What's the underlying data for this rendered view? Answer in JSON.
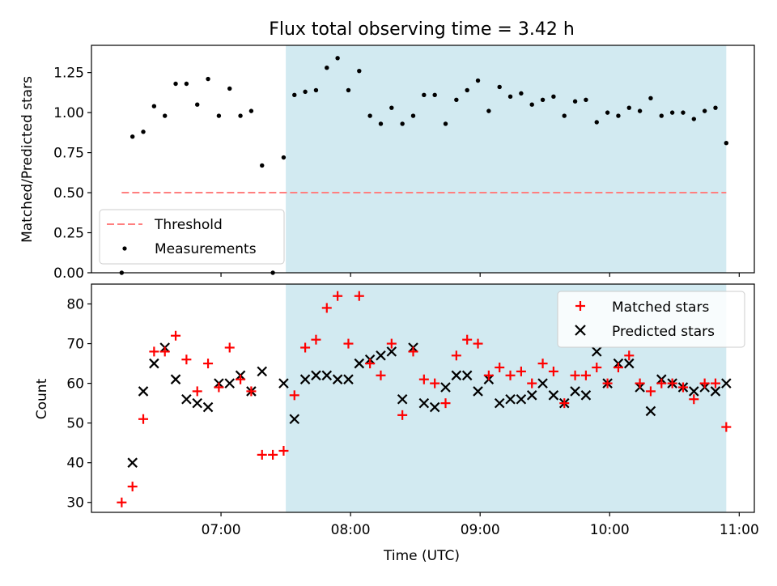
{
  "chart_data": [
    {
      "type": "scatter",
      "title": "Flux total observing time = 3.42 h",
      "xlabel": "",
      "ylabel": "Matched/Predicted stars",
      "xlim": [
        "06:00",
        "11:07"
      ],
      "ylim": [
        0,
        1.42
      ],
      "yticks": [
        "0.00",
        "0.25",
        "0.50",
        "0.75",
        "1.00",
        "1.25"
      ],
      "shaded_region": {
        "start": "07:30",
        "end": "10:54",
        "color": "#add8e6"
      },
      "threshold": {
        "name": "Threshold",
        "value": 0.5,
        "start": "06:14",
        "end": "10:54",
        "color": "#ff7f7f"
      },
      "legend_position": "lower-left",
      "series": [
        {
          "name": "Measurements",
          "color": "#000000",
          "marker": "dot",
          "x": [
            "06:14",
            "06:19",
            "06:24",
            "06:29",
            "06:34",
            "06:39",
            "06:44",
            "06:49",
            "06:54",
            "06:59",
            "07:04",
            "07:09",
            "07:14",
            "07:19",
            "07:24",
            "07:29",
            "07:34",
            "07:39",
            "07:44",
            "07:49",
            "07:54",
            "07:59",
            "08:04",
            "08:09",
            "08:14",
            "08:19",
            "08:24",
            "08:29",
            "08:34",
            "08:39",
            "08:44",
            "08:49",
            "08:54",
            "08:59",
            "09:04",
            "09:09",
            "09:14",
            "09:19",
            "09:24",
            "09:29",
            "09:34",
            "09:39",
            "09:44",
            "09:49",
            "09:54",
            "09:59",
            "10:04",
            "10:09",
            "10:14",
            "10:19",
            "10:24",
            "10:29",
            "10:34",
            "10:39",
            "10:44",
            "10:49",
            "10:54"
          ],
          "y": [
            0.0,
            0.85,
            0.88,
            1.04,
            0.98,
            1.18,
            1.18,
            1.05,
            1.21,
            0.98,
            1.15,
            0.98,
            1.01,
            0.67,
            0.0,
            0.72,
            1.11,
            1.13,
            1.14,
            1.28,
            1.34,
            1.14,
            1.26,
            0.98,
            0.93,
            1.03,
            0.93,
            0.98,
            1.11,
            1.11,
            0.93,
            1.08,
            1.14,
            1.2,
            1.01,
            1.16,
            1.1,
            1.12,
            1.05,
            1.08,
            1.1,
            0.98,
            1.07,
            1.08,
            0.94,
            1.0,
            0.98,
            1.03,
            1.01,
            1.09,
            0.98,
            1.0,
            1.0,
            0.96,
            1.01,
            1.03,
            0.81
          ]
        }
      ]
    },
    {
      "type": "scatter",
      "title": "",
      "xlabel": "Time (UTC)",
      "ylabel": "Count",
      "xlim": [
        "06:00",
        "11:07"
      ],
      "ylim": [
        27.5,
        85
      ],
      "xticks": [
        "07:00",
        "08:00",
        "09:00",
        "10:00",
        "11:00"
      ],
      "yticks": [
        "30",
        "40",
        "50",
        "60",
        "70",
        "80"
      ],
      "shaded_region": {
        "start": "07:30",
        "end": "10:54",
        "color": "#add8e6"
      },
      "legend_position": "upper-right",
      "series": [
        {
          "name": "Matched stars",
          "color": "#ff0000",
          "marker": "plus",
          "x": [
            "06:14",
            "06:19",
            "06:24",
            "06:29",
            "06:34",
            "06:39",
            "06:44",
            "06:49",
            "06:54",
            "06:59",
            "07:04",
            "07:09",
            "07:14",
            "07:19",
            "07:24",
            "07:29",
            "07:34",
            "07:39",
            "07:44",
            "07:49",
            "07:54",
            "07:59",
            "08:04",
            "08:09",
            "08:14",
            "08:19",
            "08:24",
            "08:29",
            "08:34",
            "08:39",
            "08:44",
            "08:49",
            "08:54",
            "08:59",
            "09:04",
            "09:09",
            "09:14",
            "09:19",
            "09:24",
            "09:29",
            "09:34",
            "09:39",
            "09:44",
            "09:49",
            "09:54",
            "09:59",
            "10:04",
            "10:09",
            "10:14",
            "10:19",
            "10:24",
            "10:29",
            "10:34",
            "10:39",
            "10:44",
            "10:49",
            "10:54"
          ],
          "y": [
            30,
            34,
            51,
            68,
            68,
            72,
            66,
            58,
            65,
            59,
            69,
            61,
            58,
            42,
            42,
            43,
            57,
            69,
            71,
            79,
            82,
            70,
            82,
            65,
            62,
            70,
            52,
            68,
            61,
            60,
            55,
            67,
            71,
            70,
            62,
            64,
            62,
            63,
            60,
            65,
            63,
            55,
            62,
            62,
            64,
            60,
            64,
            67,
            60,
            58,
            60,
            60,
            59,
            56,
            60,
            60,
            49
          ]
        },
        {
          "name": "Predicted stars",
          "color": "#000000",
          "marker": "x",
          "x": [
            "06:19",
            "06:24",
            "06:29",
            "06:34",
            "06:39",
            "06:44",
            "06:49",
            "06:54",
            "06:59",
            "07:04",
            "07:09",
            "07:14",
            "07:19",
            "07:29",
            "07:34",
            "07:39",
            "07:44",
            "07:49",
            "07:54",
            "07:59",
            "08:04",
            "08:09",
            "08:14",
            "08:19",
            "08:24",
            "08:29",
            "08:34",
            "08:39",
            "08:44",
            "08:49",
            "08:54",
            "08:59",
            "09:04",
            "09:09",
            "09:14",
            "09:19",
            "09:24",
            "09:29",
            "09:34",
            "09:39",
            "09:44",
            "09:49",
            "09:54",
            "09:59",
            "10:04",
            "10:09",
            "10:14",
            "10:19",
            "10:24",
            "10:29",
            "10:34",
            "10:39",
            "10:44",
            "10:49",
            "10:54"
          ],
          "y": [
            40,
            58,
            65,
            69,
            61,
            56,
            55,
            54,
            60,
            60,
            62,
            58,
            63,
            60,
            51,
            61,
            62,
            62,
            61,
            61,
            65,
            66,
            67,
            68,
            56,
            69,
            55,
            54,
            59,
            62,
            62,
            58,
            61,
            55,
            56,
            56,
            57,
            60,
            57,
            55,
            58,
            57,
            68,
            60,
            65,
            65,
            59,
            53,
            61,
            60,
            59,
            58,
            59,
            58,
            60
          ]
        }
      ]
    }
  ]
}
